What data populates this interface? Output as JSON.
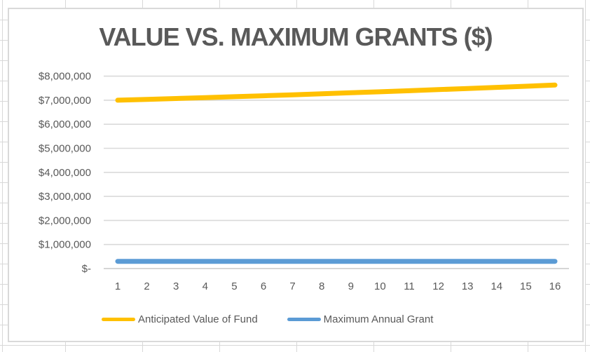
{
  "chart_data": {
    "type": "line",
    "title": "VALUE VS. MAXIMUM GRANTS ($)",
    "x": [
      1,
      2,
      3,
      4,
      5,
      6,
      7,
      8,
      9,
      10,
      11,
      12,
      13,
      14,
      15,
      16
    ],
    "xticklabels": [
      "1",
      "2",
      "3",
      "4",
      "5",
      "6",
      "7",
      "8",
      "9",
      "10",
      "11",
      "12",
      "13",
      "14",
      "15",
      "16"
    ],
    "series": [
      {
        "name": "Anticipated Value of Fund",
        "color": "#FFC000",
        "values": [
          7000000,
          7035000,
          7071000,
          7108000,
          7146000,
          7185000,
          7225000,
          7266000,
          7308000,
          7351000,
          7395000,
          7440000,
          7486000,
          7533000,
          7581000,
          7630000
        ]
      },
      {
        "name": "Maximum Annual Grant",
        "color": "#5B9BD5",
        "values": [
          300000,
          300000,
          300000,
          300000,
          300000,
          300000,
          300000,
          300000,
          300000,
          300000,
          300000,
          300000,
          300000,
          300000,
          300000,
          300000
        ]
      }
    ],
    "ylim": [
      0,
      8000000
    ],
    "yticks": [
      {
        "value": 0,
        "label": "$-"
      },
      {
        "value": 1000000,
        "label": "$1,000,000"
      },
      {
        "value": 2000000,
        "label": "$2,000,000"
      },
      {
        "value": 3000000,
        "label": "$3,000,000"
      },
      {
        "value": 4000000,
        "label": "$4,000,000"
      },
      {
        "value": 5000000,
        "label": "$5,000,000"
      },
      {
        "value": 6000000,
        "label": "$6,000,000"
      },
      {
        "value": 7000000,
        "label": "$7,000,000"
      },
      {
        "value": 8000000,
        "label": "$8,000,000"
      }
    ],
    "grid": "horizontal",
    "legend_position": "bottom",
    "text_color": "#595959",
    "gridline_color": "#D9D9D9"
  }
}
